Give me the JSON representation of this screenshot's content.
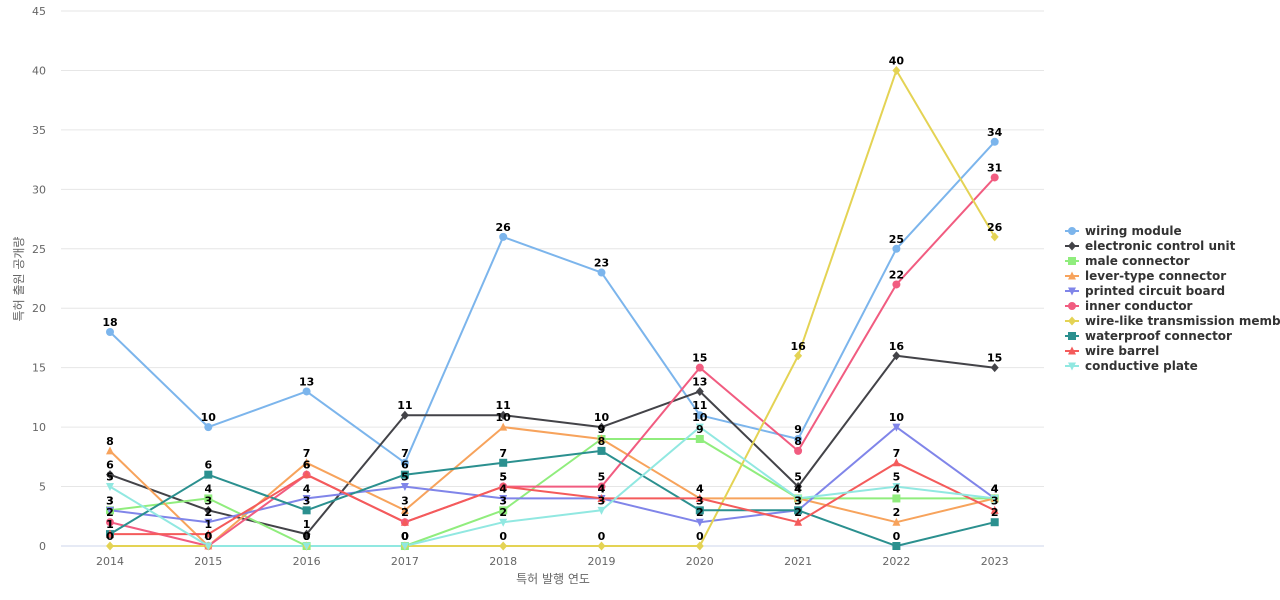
{
  "chart_data": {
    "type": "line",
    "title": "",
    "xlabel": "특허 발행 연도",
    "ylabel": "특허 출원 공개량",
    "categories": [
      "2014",
      "2015",
      "2016",
      "2017",
      "2018",
      "2019",
      "2020",
      "2021",
      "2022",
      "2023"
    ],
    "ylim": [
      0,
      45
    ],
    "yticks": [
      0,
      5,
      10,
      15,
      20,
      25,
      30,
      35,
      40,
      45
    ],
    "grid": true,
    "legend_position": "right",
    "series": [
      {
        "name": "wiring module",
        "color": "#7cb5ec",
        "marker": "circle",
        "values": [
          18,
          10,
          13,
          7,
          26,
          23,
          11,
          9,
          25,
          34
        ]
      },
      {
        "name": "electronic control unit",
        "color": "#434348",
        "marker": "diamond",
        "values": [
          6,
          3,
          1,
          11,
          11,
          10,
          13,
          5,
          16,
          15
        ]
      },
      {
        "name": "male connector",
        "color": "#90ed7d",
        "marker": "square",
        "values": [
          3,
          4,
          0,
          0,
          3,
          9,
          9,
          4,
          4,
          4
        ]
      },
      {
        "name": "lever-type connector",
        "color": "#f7a35c",
        "marker": "triangle",
        "values": [
          8,
          0,
          7,
          3,
          10,
          9,
          4,
          4,
          2,
          4
        ]
      },
      {
        "name": "printed circuit board",
        "color": "#8085e9",
        "marker": "triangle-down",
        "values": [
          3,
          2,
          4,
          5,
          4,
          4,
          2,
          3,
          10,
          4
        ]
      },
      {
        "name": "inner conductor",
        "color": "#f15c80",
        "marker": "circle",
        "values": [
          2,
          0,
          6,
          2,
          5,
          5,
          15,
          8,
          22,
          31
        ]
      },
      {
        "name": "wire-like transmission member",
        "color": "#e4d354",
        "marker": "diamond",
        "values": [
          0,
          0,
          0,
          0,
          0,
          0,
          0,
          16,
          40,
          26
        ]
      },
      {
        "name": "waterproof connector",
        "color": "#2b908f",
        "marker": "square",
        "values": [
          1,
          6,
          3,
          6,
          7,
          8,
          3,
          3,
          0,
          2
        ]
      },
      {
        "name": "wire barrel",
        "color": "#f45b5b",
        "marker": "triangle",
        "values": [
          1,
          1,
          6,
          2,
          5,
          4,
          4,
          2,
          7,
          3
        ]
      },
      {
        "name": "conductive plate",
        "color": "#91e8e1",
        "marker": "triangle-down",
        "values": [
          5,
          0,
          0,
          0,
          2,
          3,
          10,
          4,
          5,
          4
        ]
      }
    ]
  }
}
